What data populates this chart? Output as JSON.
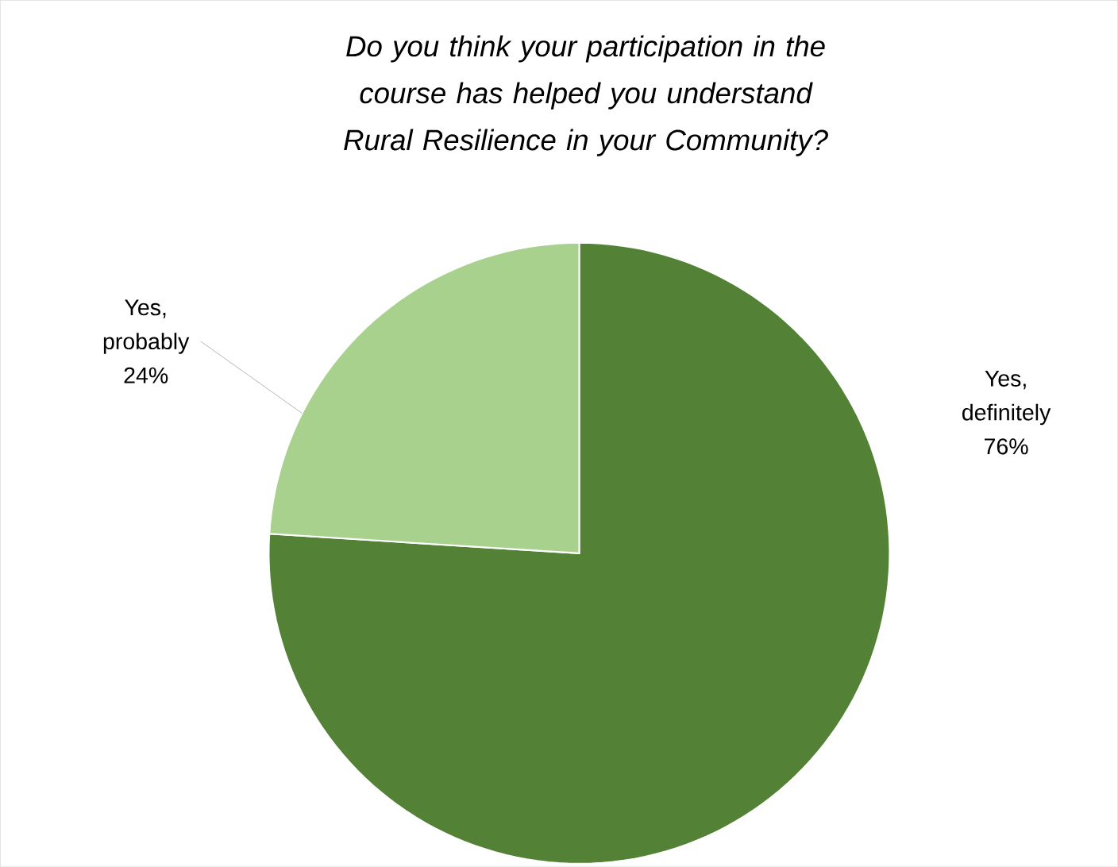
{
  "chart_data": {
    "type": "pie",
    "title": "*Do you think your participation in the course has helped you understand Rural Resilience in your Community?*",
    "categories": [
      "Yes, definitely",
      "Yes, probably"
    ],
    "values": [
      76,
      24
    ],
    "colors": [
      "#538135",
      "#a9d18e"
    ],
    "value_labels": [
      "76%",
      "24%"
    ]
  }
}
